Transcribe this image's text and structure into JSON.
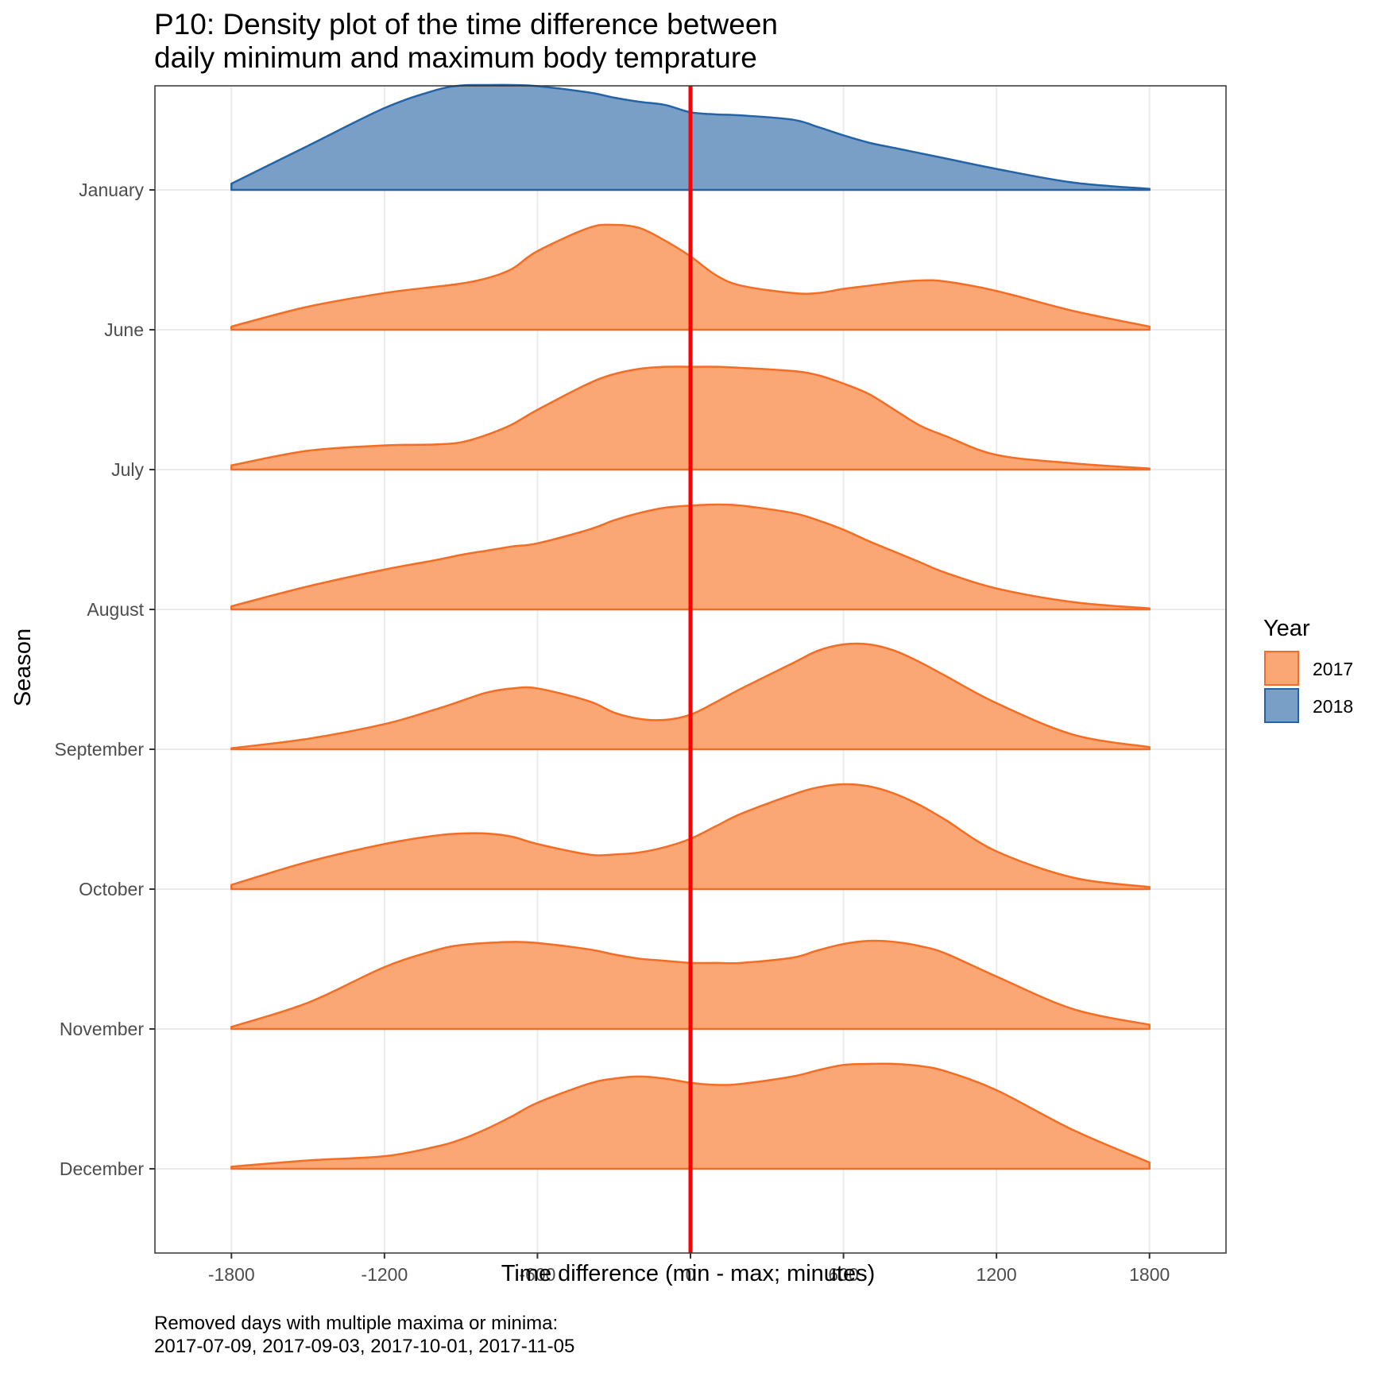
{
  "chart_data": {
    "type": "area",
    "subtype": "ridgeline-density",
    "title_lines": [
      "P10: Density plot of the time difference between",
      "daily minimum and maximum body temprature"
    ],
    "xlabel": "Time difference (min - max; minutes)",
    "ylabel": "Season",
    "caption_lines": [
      "Removed days with multiple maxima or minima:",
      "2017-07-09, 2017-09-03, 2017-10-01, 2017-11-05"
    ],
    "xlim": [
      -2100,
      2100
    ],
    "x_ticks": [
      -1800,
      -1200,
      -600,
      0,
      600,
      1200,
      1800
    ],
    "x_tick_labels": [
      "-1800",
      "-1200",
      "-600",
      "0",
      "600",
      "1200",
      "1800"
    ],
    "categories": [
      "January",
      "June",
      "July",
      "August",
      "September",
      "October",
      "November",
      "December"
    ],
    "x": [
      -1800,
      -1500,
      -1200,
      -1000,
      -900,
      -800,
      -700,
      -600,
      -400,
      -300,
      -200,
      -100,
      0,
      100,
      200,
      400,
      500,
      600,
      700,
      800,
      900,
      1000,
      1200,
      1500,
      1800
    ],
    "reference_line": {
      "x": 0,
      "color": "#ff0000"
    },
    "legend": {
      "title": "Year",
      "position": "right",
      "entries": [
        {
          "label": "2017",
          "fill": "#fba675",
          "stroke": "#f36d24"
        },
        {
          "label": "2018",
          "fill": "#799fc7",
          "stroke": "#2463a6"
        }
      ]
    },
    "grid": true,
    "series": [
      {
        "category": "January",
        "year": "2018",
        "values": [
          0.06,
          0.42,
          0.78,
          0.95,
          0.995,
          1.0,
          1.0,
          0.99,
          0.93,
          0.88,
          0.84,
          0.81,
          0.74,
          0.72,
          0.71,
          0.67,
          0.6,
          0.52,
          0.45,
          0.4,
          0.35,
          0.3,
          0.2,
          0.07,
          0.01
        ]
      },
      {
        "category": "June",
        "year": "2017",
        "values": [
          0.03,
          0.22,
          0.35,
          0.41,
          0.44,
          0.49,
          0.58,
          0.75,
          0.97,
          1.0,
          0.97,
          0.85,
          0.7,
          0.52,
          0.42,
          0.35,
          0.35,
          0.39,
          0.42,
          0.45,
          0.47,
          0.46,
          0.37,
          0.18,
          0.03
        ]
      },
      {
        "category": "July",
        "year": "2017",
        "values": [
          0.04,
          0.18,
          0.23,
          0.24,
          0.26,
          0.33,
          0.43,
          0.57,
          0.82,
          0.91,
          0.96,
          0.98,
          0.98,
          0.98,
          0.97,
          0.94,
          0.9,
          0.82,
          0.72,
          0.57,
          0.42,
          0.32,
          0.14,
          0.06,
          0.01
        ]
      },
      {
        "category": "August",
        "year": "2017",
        "values": [
          0.03,
          0.22,
          0.38,
          0.47,
          0.52,
          0.56,
          0.6,
          0.63,
          0.76,
          0.85,
          0.92,
          0.97,
          0.99,
          1.0,
          0.99,
          0.92,
          0.85,
          0.76,
          0.65,
          0.55,
          0.45,
          0.35,
          0.2,
          0.07,
          0.01
        ]
      },
      {
        "category": "September",
        "year": "2017",
        "values": [
          0.01,
          0.1,
          0.24,
          0.38,
          0.46,
          0.54,
          0.58,
          0.58,
          0.46,
          0.35,
          0.29,
          0.28,
          0.33,
          0.45,
          0.58,
          0.82,
          0.94,
          1.0,
          1.0,
          0.94,
          0.83,
          0.7,
          0.44,
          0.14,
          0.02
        ]
      },
      {
        "category": "October",
        "year": "2017",
        "values": [
          0.04,
          0.26,
          0.43,
          0.51,
          0.53,
          0.53,
          0.5,
          0.43,
          0.33,
          0.33,
          0.35,
          0.4,
          0.48,
          0.6,
          0.72,
          0.9,
          0.97,
          1.0,
          0.98,
          0.91,
          0.8,
          0.66,
          0.36,
          0.11,
          0.02
        ]
      },
      {
        "category": "November",
        "year": "2017",
        "values": [
          0.02,
          0.25,
          0.59,
          0.75,
          0.8,
          0.82,
          0.83,
          0.82,
          0.76,
          0.71,
          0.67,
          0.65,
          0.63,
          0.63,
          0.63,
          0.68,
          0.75,
          0.81,
          0.84,
          0.83,
          0.79,
          0.72,
          0.5,
          0.19,
          0.04
        ]
      },
      {
        "category": "December",
        "year": "2017",
        "values": [
          0.02,
          0.08,
          0.12,
          0.21,
          0.28,
          0.38,
          0.5,
          0.63,
          0.81,
          0.86,
          0.88,
          0.86,
          0.82,
          0.8,
          0.81,
          0.88,
          0.94,
          0.99,
          1.0,
          1.0,
          0.98,
          0.93,
          0.75,
          0.37,
          0.06
        ]
      }
    ]
  }
}
